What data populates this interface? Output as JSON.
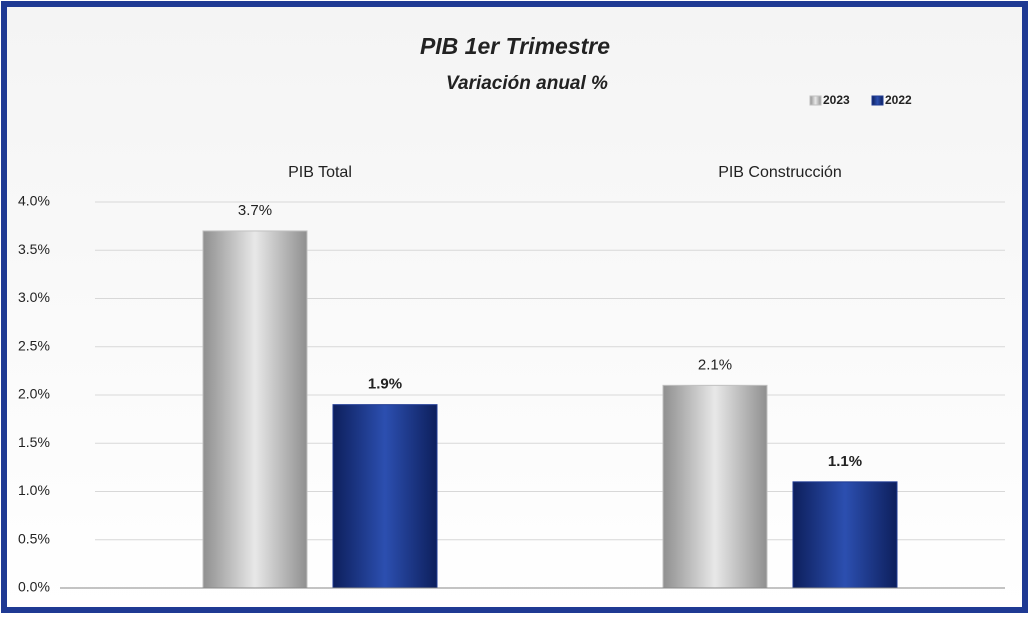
{
  "chart_data": {
    "type": "bar",
    "title": "PIB  1er Trimestre",
    "subtitle": "Variación anual %",
    "categories": [
      "PIB Total",
      "PIB Construcción"
    ],
    "series": [
      {
        "name": "2023",
        "color": "#c0c0c0",
        "values": [
          3.7,
          2.1
        ],
        "value_labels": [
          "3.7%",
          "2.1%"
        ]
      },
      {
        "name": "2022",
        "color": "#1f3a93",
        "values": [
          1.9,
          1.1
        ],
        "value_labels": [
          "1.9%",
          "1.1%"
        ]
      }
    ],
    "ylim": [
      0,
      4
    ],
    "yticks": [
      {
        "value": 0,
        "label": "0.0%"
      },
      {
        "value": 0.5,
        "label": "0.5%"
      },
      {
        "value": 1,
        "label": "1.0%"
      },
      {
        "value": 1.5,
        "label": "1.5%"
      },
      {
        "value": 2,
        "label": "2.0%"
      },
      {
        "value": 2.5,
        "label": "2.5%"
      },
      {
        "value": 3,
        "label": "3.0%"
      },
      {
        "value": 3.5,
        "label": "3.5%"
      },
      {
        "value": 4,
        "label": "4.0%"
      }
    ],
    "grid": true,
    "legend": "top-right"
  }
}
